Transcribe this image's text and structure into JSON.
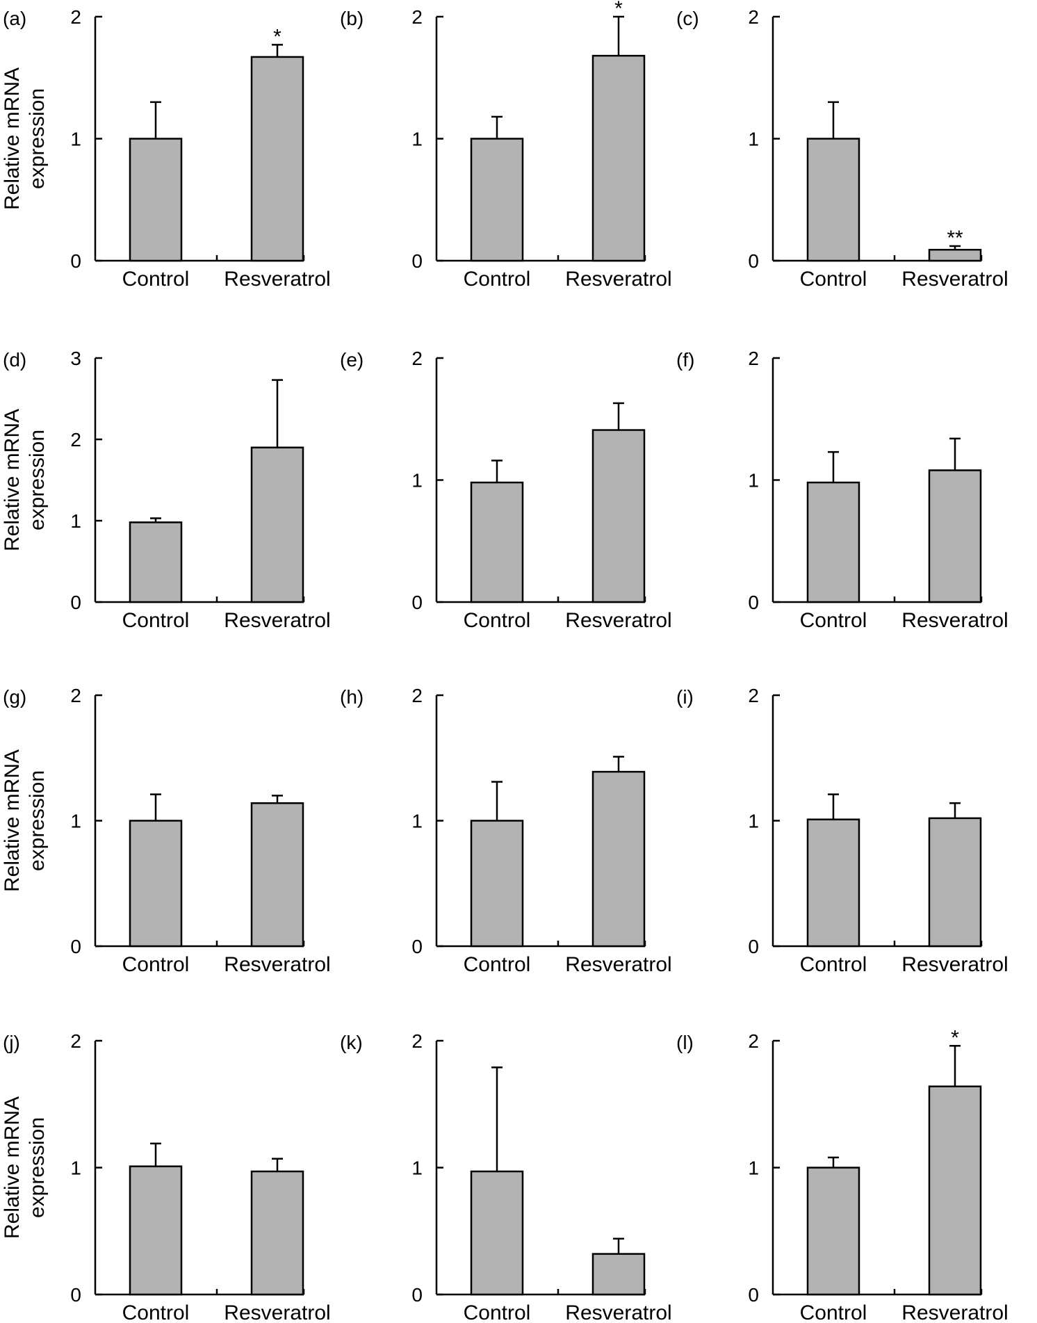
{
  "figure": {
    "ylabel_line1": "Relative mRNA",
    "ylabel_line2": "expression"
  },
  "colors": {
    "bar_fill": "#b3b3b3",
    "axis": "#000000"
  },
  "chart_data": [
    {
      "panel": "(a)",
      "type": "bar",
      "categories": [
        "Control",
        "Resveratrol"
      ],
      "values": [
        1.0,
        1.67
      ],
      "errors": [
        0.3,
        0.1
      ],
      "significance": [
        "",
        "*"
      ],
      "ylim": [
        0,
        2
      ],
      "yticks": [
        0,
        1,
        2
      ],
      "ylabel": "Relative mRNA expression"
    },
    {
      "panel": "(b)",
      "type": "bar",
      "categories": [
        "Control",
        "Resveratrol"
      ],
      "values": [
        1.0,
        1.68
      ],
      "errors": [
        0.18,
        0.32
      ],
      "significance": [
        "",
        "*"
      ],
      "ylim": [
        0,
        2
      ],
      "yticks": [
        0,
        1,
        2
      ],
      "ylabel": ""
    },
    {
      "panel": "(c)",
      "type": "bar",
      "categories": [
        "Control",
        "Resveratrol"
      ],
      "values": [
        1.0,
        0.09
      ],
      "errors": [
        0.3,
        0.03
      ],
      "significance": [
        "",
        "**"
      ],
      "ylim": [
        0,
        2
      ],
      "yticks": [
        0,
        1,
        2
      ],
      "ylabel": ""
    },
    {
      "panel": "(d)",
      "type": "bar",
      "categories": [
        "Control",
        "Resveratrol"
      ],
      "values": [
        0.98,
        1.9
      ],
      "errors": [
        0.05,
        0.83
      ],
      "significance": [
        "",
        ""
      ],
      "ylim": [
        0,
        3
      ],
      "yticks": [
        0,
        1,
        2,
        3
      ],
      "ylabel": "Relative mRNA expression"
    },
    {
      "panel": "(e)",
      "type": "bar",
      "categories": [
        "Control",
        "Resveratrol"
      ],
      "values": [
        0.98,
        1.41
      ],
      "errors": [
        0.18,
        0.22
      ],
      "significance": [
        "",
        ""
      ],
      "ylim": [
        0,
        2
      ],
      "yticks": [
        0,
        1,
        2
      ],
      "ylabel": ""
    },
    {
      "panel": "(f)",
      "type": "bar",
      "categories": [
        "Control",
        "Resveratrol"
      ],
      "values": [
        0.98,
        1.08
      ],
      "errors": [
        0.25,
        0.26
      ],
      "significance": [
        "",
        ""
      ],
      "ylim": [
        0,
        2
      ],
      "yticks": [
        0,
        1,
        2
      ],
      "ylabel": ""
    },
    {
      "panel": "(g)",
      "type": "bar",
      "categories": [
        "Control",
        "Resveratrol"
      ],
      "values": [
        1.0,
        1.14
      ],
      "errors": [
        0.21,
        0.06
      ],
      "significance": [
        "",
        ""
      ],
      "ylim": [
        0,
        2
      ],
      "yticks": [
        0,
        1,
        2
      ],
      "ylabel": "Relative mRNA expression"
    },
    {
      "panel": "(h)",
      "type": "bar",
      "categories": [
        "Control",
        "Resveratrol"
      ],
      "values": [
        1.0,
        1.39
      ],
      "errors": [
        0.31,
        0.12
      ],
      "significance": [
        "",
        ""
      ],
      "ylim": [
        0,
        2
      ],
      "yticks": [
        0,
        1,
        2
      ],
      "ylabel": ""
    },
    {
      "panel": "(i)",
      "type": "bar",
      "categories": [
        "Control",
        "Resveratrol"
      ],
      "values": [
        1.01,
        1.02
      ],
      "errors": [
        0.2,
        0.12
      ],
      "significance": [
        "",
        ""
      ],
      "ylim": [
        0,
        2
      ],
      "yticks": [
        0,
        1,
        2
      ],
      "ylabel": ""
    },
    {
      "panel": "(j)",
      "type": "bar",
      "categories": [
        "Control",
        "Resveratrol"
      ],
      "values": [
        1.01,
        0.97
      ],
      "errors": [
        0.18,
        0.1
      ],
      "significance": [
        "",
        ""
      ],
      "ylim": [
        0,
        2
      ],
      "yticks": [
        0,
        1,
        2
      ],
      "ylabel": "Relative mRNA expression"
    },
    {
      "panel": "(k)",
      "type": "bar",
      "categories": [
        "Control",
        "Resveratrol"
      ],
      "values": [
        0.97,
        0.32
      ],
      "errors": [
        0.82,
        0.12
      ],
      "significance": [
        "",
        ""
      ],
      "ylim": [
        0,
        2
      ],
      "yticks": [
        0,
        1,
        2
      ],
      "ylabel": ""
    },
    {
      "panel": "(l)",
      "type": "bar",
      "categories": [
        "Control",
        "Resveratrol"
      ],
      "values": [
        1.0,
        1.64
      ],
      "errors": [
        0.08,
        0.32
      ],
      "significance": [
        "",
        "*"
      ],
      "ylim": [
        0,
        2
      ],
      "yticks": [
        0,
        1,
        2
      ],
      "ylabel": ""
    }
  ]
}
